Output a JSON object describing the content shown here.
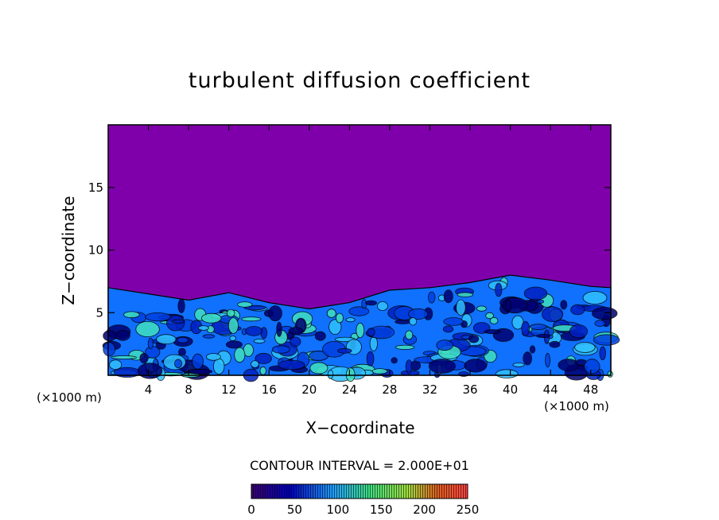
{
  "chart_data": {
    "type": "heatmap",
    "title": "turbulent diffusion coefficient",
    "xlabel": "X−coordinate",
    "ylabel": "Z−coordinate",
    "x_unit_label": "(×1000 m)",
    "y_unit_label": "(×1000 m)",
    "x_ticks": [
      4,
      8,
      12,
      16,
      20,
      24,
      28,
      32,
      36,
      40,
      44,
      48
    ],
    "y_ticks": [
      5,
      10,
      15
    ],
    "xlim": [
      0,
      50
    ],
    "ylim": [
      0,
      20
    ],
    "contour_interval_text": "CONTOUR INTERVAL = 2.000E+01",
    "colorbar": {
      "ticks": [
        0,
        50,
        100,
        150,
        200,
        250
      ],
      "range": [
        0,
        250
      ]
    },
    "turbulent_layer_top_km": [
      [
        0,
        7.0
      ],
      [
        4,
        6.5
      ],
      [
        8,
        6.0
      ],
      [
        12,
        6.6
      ],
      [
        16,
        5.8
      ],
      [
        20,
        5.3
      ],
      [
        24,
        5.8
      ],
      [
        28,
        6.8
      ],
      [
        32,
        7.0
      ],
      [
        36,
        7.4
      ],
      [
        40,
        8.0
      ],
      [
        44,
        7.6
      ],
      [
        48,
        7.1
      ],
      [
        50,
        7.0
      ]
    ],
    "colors": {
      "background_field": "#7f00aa",
      "low": "#000070",
      "mid": "#1070ff",
      "high": "#40e0c0"
    }
  }
}
